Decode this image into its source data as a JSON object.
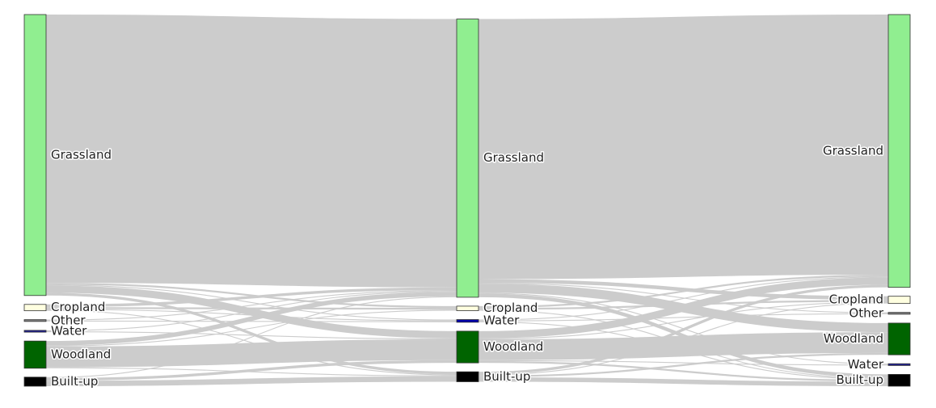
{
  "chart_data": {
    "type": "sankey",
    "title": "",
    "link_color": "#cccccc",
    "columns": [
      {
        "label_side": "right",
        "nodes": [
          {
            "name": "Grassland",
            "value": 310,
            "color": "#90ee90"
          },
          {
            "name": "Cropland",
            "value": 7,
            "color": "#ffffe0"
          },
          {
            "name": "Other",
            "value": 2,
            "color": "#7f7f7f"
          },
          {
            "name": "Water",
            "value": 2,
            "color": "#1f1f8f"
          },
          {
            "name": "Woodland",
            "value": 30,
            "color": "#006400"
          },
          {
            "name": "Built-up",
            "value": 10,
            "color": "#000000"
          }
        ]
      },
      {
        "label_side": "right",
        "nodes": [
          {
            "name": "Grassland",
            "value": 307,
            "color": "#90ee90"
          },
          {
            "name": "Cropland",
            "value": 5,
            "color": "#ffffe0"
          },
          {
            "name": "Water",
            "value": 3,
            "color": "#0000aa"
          },
          {
            "name": "Woodland",
            "value": 35,
            "color": "#006400"
          },
          {
            "name": "Built-up",
            "value": 11,
            "color": "#000000"
          }
        ]
      },
      {
        "label_side": "left",
        "nodes": [
          {
            "name": "Grassland",
            "value": 301,
            "color": "#90ee90"
          },
          {
            "name": "Cropland",
            "value": 8,
            "color": "#ffffe0"
          },
          {
            "name": "Other",
            "value": 2,
            "color": "#7f7f7f"
          },
          {
            "name": "Woodland",
            "value": 35,
            "color": "#006400"
          },
          {
            "name": "Water",
            "value": 2,
            "color": "#1f1f8f"
          },
          {
            "name": "Built-up",
            "value": 13,
            "color": "#000000"
          }
        ]
      }
    ],
    "flows": [
      {
        "from_column": 0,
        "to_column": 1,
        "links": [
          {
            "source": "Grassland",
            "target": "Grassland",
            "value": 296
          },
          {
            "source": "Grassland",
            "target": "Cropland",
            "value": 2
          },
          {
            "source": "Grassland",
            "target": "Water",
            "value": 1
          },
          {
            "source": "Grassland",
            "target": "Woodland",
            "value": 8
          },
          {
            "source": "Grassland",
            "target": "Built-up",
            "value": 3
          },
          {
            "source": "Cropland",
            "target": "Grassland",
            "value": 3
          },
          {
            "source": "Cropland",
            "target": "Cropland",
            "value": 2
          },
          {
            "source": "Cropland",
            "target": "Water",
            "value": 1
          },
          {
            "source": "Cropland",
            "target": "Built-up",
            "value": 1
          },
          {
            "source": "Other",
            "target": "Grassland",
            "value": 1
          },
          {
            "source": "Other",
            "target": "Water",
            "value": 1
          },
          {
            "source": "Water",
            "target": "Grassland",
            "value": 1
          },
          {
            "source": "Water",
            "target": "Woodland",
            "value": 1
          },
          {
            "source": "Woodland",
            "target": "Grassland",
            "value": 5
          },
          {
            "source": "Woodland",
            "target": "Cropland",
            "value": 1
          },
          {
            "source": "Woodland",
            "target": "Woodland",
            "value": 23
          },
          {
            "source": "Woodland",
            "target": "Built-up",
            "value": 1
          },
          {
            "source": "Built-up",
            "target": "Grassland",
            "value": 1
          },
          {
            "source": "Built-up",
            "target": "Woodland",
            "value": 3
          },
          {
            "source": "Built-up",
            "target": "Built-up",
            "value": 6
          }
        ]
      },
      {
        "from_column": 1,
        "to_column": 2,
        "links": [
          {
            "source": "Grassland",
            "target": "Grassland",
            "value": 287
          },
          {
            "source": "Grassland",
            "target": "Cropland",
            "value": 4
          },
          {
            "source": "Grassland",
            "target": "Other",
            "value": 1
          },
          {
            "source": "Grassland",
            "target": "Woodland",
            "value": 10
          },
          {
            "source": "Grassland",
            "target": "Water",
            "value": 1
          },
          {
            "source": "Grassland",
            "target": "Built-up",
            "value": 4
          },
          {
            "source": "Cropland",
            "target": "Grassland",
            "value": 2
          },
          {
            "source": "Cropland",
            "target": "Cropland",
            "value": 2
          },
          {
            "source": "Cropland",
            "target": "Built-up",
            "value": 1
          },
          {
            "source": "Water",
            "target": "Grassland",
            "value": 1
          },
          {
            "source": "Water",
            "target": "Other",
            "value": 1
          },
          {
            "source": "Water",
            "target": "Built-up",
            "value": 1
          },
          {
            "source": "Woodland",
            "target": "Grassland",
            "value": 8
          },
          {
            "source": "Woodland",
            "target": "Cropland",
            "value": 1
          },
          {
            "source": "Woodland",
            "target": "Woodland",
            "value": 23
          },
          {
            "source": "Woodland",
            "target": "Water",
            "value": 1
          },
          {
            "source": "Woodland",
            "target": "Built-up",
            "value": 2
          },
          {
            "source": "Built-up",
            "target": "Grassland",
            "value": 3
          },
          {
            "source": "Built-up",
            "target": "Cropland",
            "value": 1
          },
          {
            "source": "Built-up",
            "target": "Woodland",
            "value": 2
          },
          {
            "source": "Built-up",
            "target": "Built-up",
            "value": 5
          }
        ]
      }
    ]
  }
}
